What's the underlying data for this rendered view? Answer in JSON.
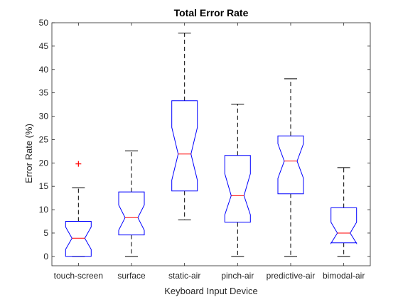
{
  "chart_data": {
    "type": "boxplot",
    "title": "Total Error Rate",
    "xlabel": "Keyboard Input Device",
    "ylabel": "Error Rate (%)",
    "ylim": [
      -2,
      50
    ],
    "yticks": [
      0,
      5,
      10,
      15,
      20,
      25,
      30,
      35,
      40,
      45,
      50
    ],
    "grid": false,
    "notched": true,
    "categories": [
      "touch-screen",
      "surface",
      "static-air",
      "pinch-air",
      "predictive-air",
      "bimodal-air"
    ],
    "boxes": [
      {
        "whisker_low": 0,
        "q1": 0,
        "median": 3.9,
        "q3": 7.5,
        "whisker_high": 14.7,
        "notch_low": 1.5,
        "notch_high": 6.3,
        "outliers": [
          19.8
        ]
      },
      {
        "whisker_low": 0,
        "q1": 4.6,
        "median": 8.3,
        "q3": 13.8,
        "whisker_high": 22.6,
        "notch_low": 5.6,
        "notch_high": 11.0,
        "outliers": []
      },
      {
        "whisker_low": 7.8,
        "q1": 14.0,
        "median": 21.9,
        "q3": 33.3,
        "whisker_high": 47.8,
        "notch_low": 16.3,
        "notch_high": 27.6,
        "outliers": []
      },
      {
        "whisker_low": 0,
        "q1": 7.3,
        "median": 13.0,
        "q3": 21.6,
        "whisker_high": 32.6,
        "notch_low": 8.9,
        "notch_high": 17.7,
        "outliers": []
      },
      {
        "whisker_low": 0,
        "q1": 13.4,
        "median": 20.4,
        "q3": 25.8,
        "whisker_high": 38.0,
        "notch_low": 16.7,
        "notch_high": 24.1,
        "outliers": []
      },
      {
        "whisker_low": 0,
        "q1": 2.9,
        "median": 5.0,
        "q3": 10.4,
        "whisker_high": 19.0,
        "notch_low": 2.8,
        "notch_high": 7.3,
        "outliers": []
      }
    ]
  },
  "colors": {
    "box": "#0000ff",
    "median": "#ff0000",
    "whisker": "#000000",
    "outlier": "#ff0000",
    "axis": "#262626"
  }
}
